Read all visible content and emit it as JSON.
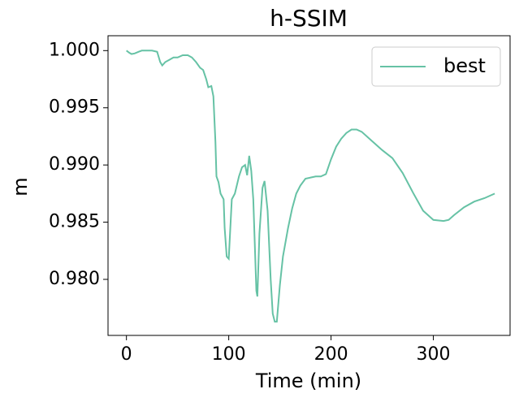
{
  "chart_data": {
    "type": "line",
    "title": "h-SSIM",
    "x_label": "Time (min)",
    "y_label": "m",
    "xlim": [
      -18,
      375
    ],
    "ylim": [
      0.9751,
      1.0013
    ],
    "xticks": [
      0,
      100,
      200,
      300
    ],
    "yticks": [
      {
        "value": 0.98,
        "label": "0.980"
      },
      0.985,
      {
        "value": 0.99,
        "label": "0.990"
      },
      0.995,
      {
        "value": 1,
        "label": "1.000"
      }
    ],
    "legend": "upper right",
    "series": [
      {
        "name": "best",
        "color": "#66c2a5",
        "x": [
          0,
          3,
          5,
          8,
          12,
          15,
          20,
          25,
          30,
          33,
          35,
          38,
          42,
          46,
          50,
          55,
          60,
          64,
          68,
          72,
          75,
          78,
          80,
          83,
          85,
          87,
          88,
          90,
          92,
          95,
          96,
          98,
          100,
          103,
          106,
          110,
          113,
          116,
          118,
          120,
          122,
          124,
          127,
          128,
          130,
          133,
          135,
          138,
          141,
          143,
          145,
          147,
          150,
          153,
          158,
          162,
          166,
          170,
          175,
          180,
          185,
          190,
          195,
          200,
          205,
          210,
          215,
          220,
          225,
          230,
          240,
          250,
          260,
          270,
          280,
          290,
          300,
          310,
          315,
          320,
          330,
          340,
          350,
          360
        ],
        "values": [
          1.0,
          0.9998,
          0.9997,
          0.99975,
          0.9999,
          1.0,
          1.0,
          1.0,
          0.9999,
          0.999,
          0.9987,
          0.999,
          0.9992,
          0.9994,
          0.9994,
          0.9996,
          0.9996,
          0.9994,
          0.999,
          0.9985,
          0.9983,
          0.9975,
          0.9968,
          0.9969,
          0.996,
          0.992,
          0.989,
          0.9885,
          0.9875,
          0.987,
          0.9845,
          0.982,
          0.9818,
          0.987,
          0.9875,
          0.989,
          0.9898,
          0.99,
          0.9891,
          0.9908,
          0.9895,
          0.987,
          0.979,
          0.9785,
          0.984,
          0.988,
          0.9886,
          0.986,
          0.98,
          0.977,
          0.9763,
          0.9763,
          0.9795,
          0.982,
          0.9845,
          0.9862,
          0.9875,
          0.9882,
          0.9888,
          0.9889,
          0.989,
          0.989,
          0.9892,
          0.9905,
          0.9916,
          0.9923,
          0.9928,
          0.9931,
          0.9931,
          0.9929,
          0.9921,
          0.9913,
          0.9906,
          0.9893,
          0.9876,
          0.986,
          0.9852,
          0.9851,
          0.9852,
          0.9856,
          0.9863,
          0.9868,
          0.9871,
          0.9875
        ]
      }
    ]
  }
}
